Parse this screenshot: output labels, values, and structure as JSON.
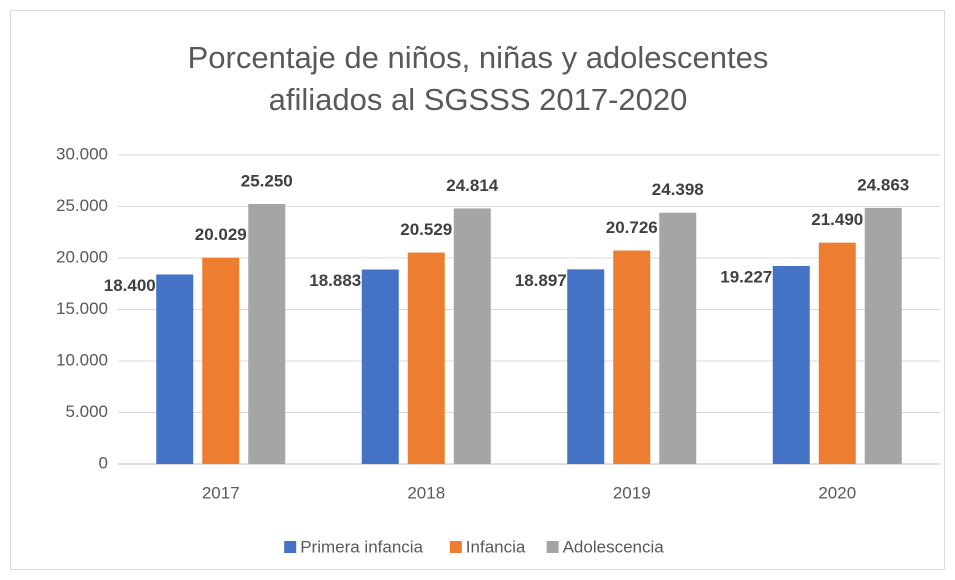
{
  "chart_data": {
    "type": "bar",
    "title": [
      "Porcentaje de niños, niñas y adolescentes",
      "afiliados al SGSSS 2017-2020"
    ],
    "categories": [
      "2017",
      "2018",
      "2019",
      "2020"
    ],
    "series": [
      {
        "name": "Primera infancia",
        "color": "#4472c4",
        "values": [
          18400,
          18883,
          18897,
          19227
        ],
        "value_labels": [
          "18.400",
          "18.883",
          "18.897",
          "19.227"
        ]
      },
      {
        "name": "Infancia",
        "color": "#ed7d31",
        "values": [
          20029,
          20529,
          20726,
          21490
        ],
        "value_labels": [
          "20.029",
          "20.529",
          "20.726",
          "21.490"
        ]
      },
      {
        "name": "Adolescencia",
        "color": "#a5a5a5",
        "values": [
          25250,
          24814,
          24398,
          24863
        ],
        "value_labels": [
          "25.250",
          "24.814",
          "24.398",
          "24.863"
        ]
      }
    ],
    "ylim": [
      0,
      30000
    ],
    "yticks": [
      0,
      {
        "value": 5000,
        "label": "5.000"
      },
      {
        "value": 10000,
        "label": "10.000"
      },
      {
        "value": 15000,
        "label": "15.000"
      },
      {
        "value": 20000,
        "label": "20.000"
      },
      {
        "value": 25000,
        "label": "25.000"
      },
      {
        "value": 30000,
        "label": "30.000"
      }
    ],
    "grid": true,
    "legend": "bottom"
  }
}
